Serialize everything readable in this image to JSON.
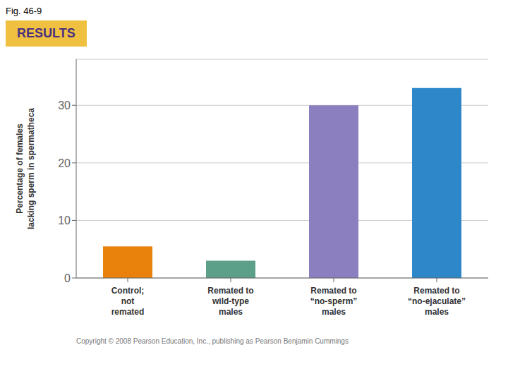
{
  "chart_data": {
    "type": "bar",
    "title": "Fig. 46-9",
    "annotations": [
      "RESULTS",
      "Copyright © 2008 Pearson Education, Inc., publishing as Pearson Benjamin Cummings"
    ],
    "categories": [
      "Control;\nnot\nremated",
      "Remated to\nwild-type\nmales",
      "Remated to\n“no-sperm”\nmales",
      "Remated to\n“no-ejaculate”\nmales"
    ],
    "values": [
      5.5,
      3.0,
      30.0,
      33.0
    ],
    "colors": [
      "#E8820C",
      "#5DA08A",
      "#8B7FBF",
      "#2E87C8"
    ],
    "ylabel": "Percentage of females\nlacking sperm in spermatheca",
    "ylim": [
      0,
      38
    ],
    "yticks": [
      0,
      10,
      20,
      30
    ],
    "grid": true
  }
}
